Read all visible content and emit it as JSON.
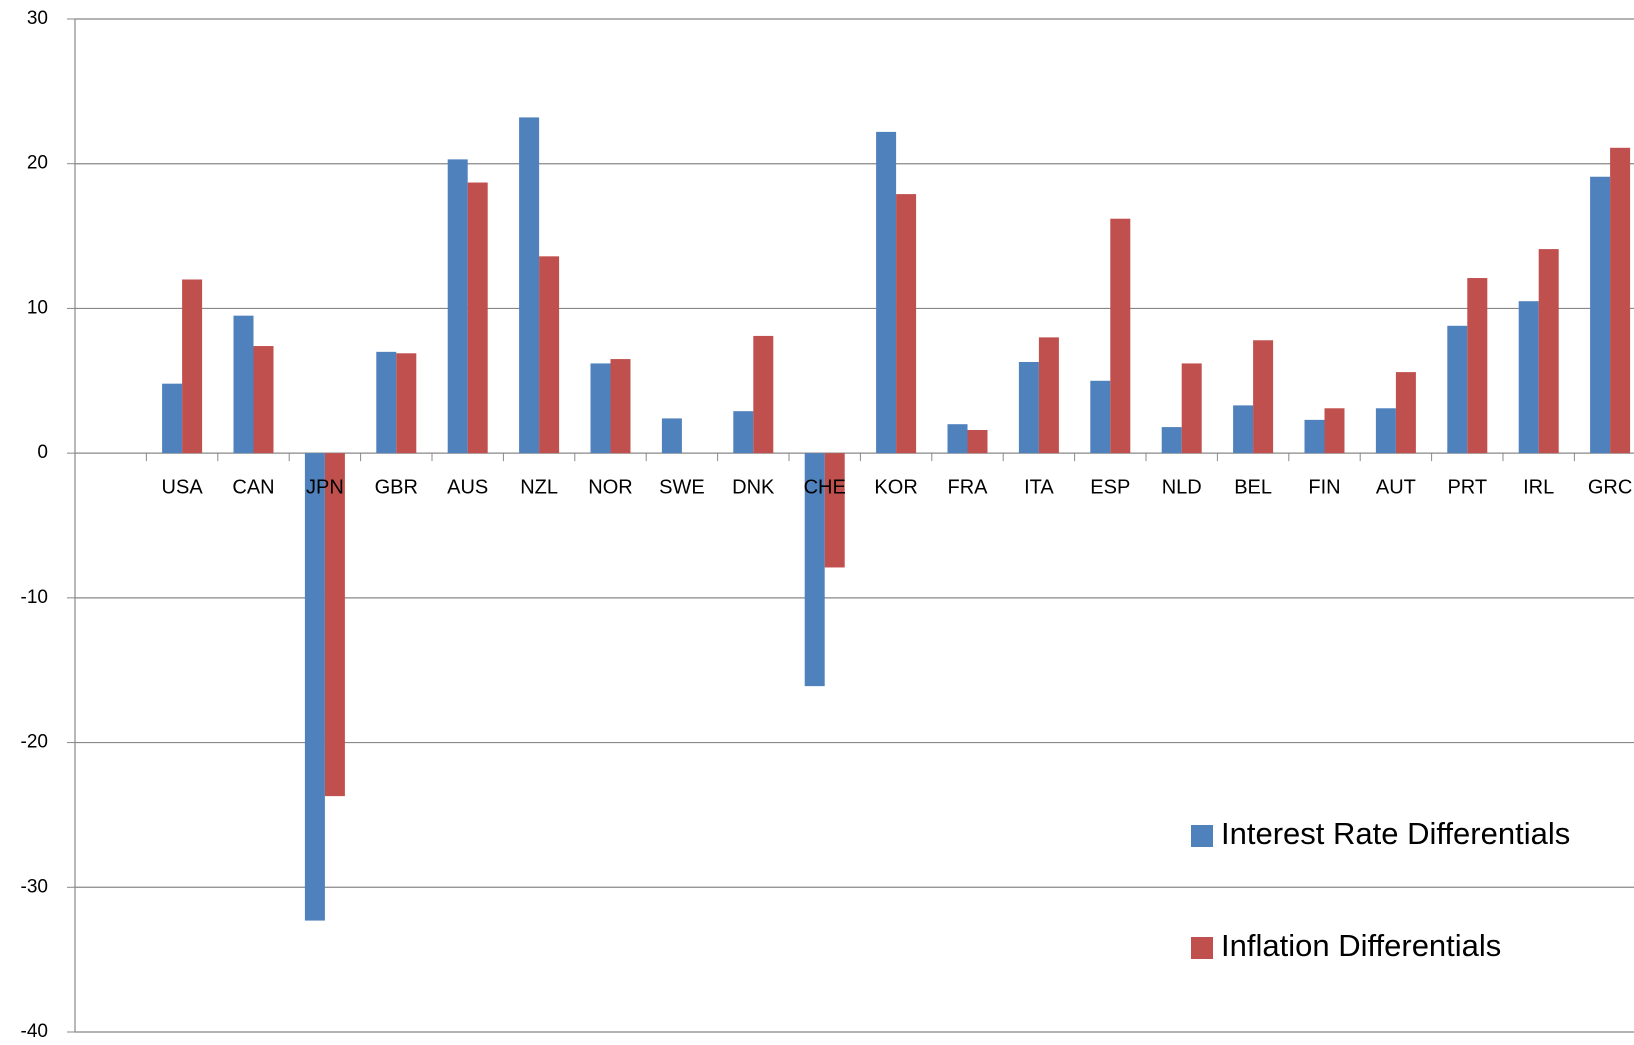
{
  "chart_data": {
    "type": "bar",
    "categories": [
      "USA",
      "CAN",
      "JPN",
      "GBR",
      "AUS",
      "NZL",
      "NOR",
      "SWE",
      "DNK",
      "CHE",
      "KOR",
      "FRA",
      "ITA",
      "ESP",
      "NLD",
      "BEL",
      "FIN",
      "AUT",
      "PRT",
      "IRL",
      "GRC"
    ],
    "series": [
      {
        "name": "Interest Rate Differentials",
        "color": "#4f81bd",
        "values": [
          4.8,
          9.5,
          -32.3,
          7.0,
          20.3,
          23.2,
          6.2,
          2.4,
          2.9,
          -16.1,
          22.2,
          2.0,
          6.3,
          5.0,
          1.8,
          3.3,
          2.3,
          3.1,
          8.8,
          10.5,
          19.1
        ]
      },
      {
        "name": "Inflation Differentials",
        "color": "#c0504d",
        "values": [
          12.0,
          7.4,
          -23.7,
          6.9,
          18.7,
          13.6,
          6.5,
          null,
          8.1,
          -7.9,
          17.9,
          1.6,
          8.0,
          16.2,
          6.2,
          7.8,
          3.1,
          5.6,
          12.1,
          14.1,
          21.1
        ]
      }
    ],
    "ylim": [
      -40,
      30
    ],
    "yticks": [
      -40,
      -30,
      -20,
      -10,
      0,
      10,
      20,
      30
    ],
    "grid": true,
    "legend": "right"
  }
}
